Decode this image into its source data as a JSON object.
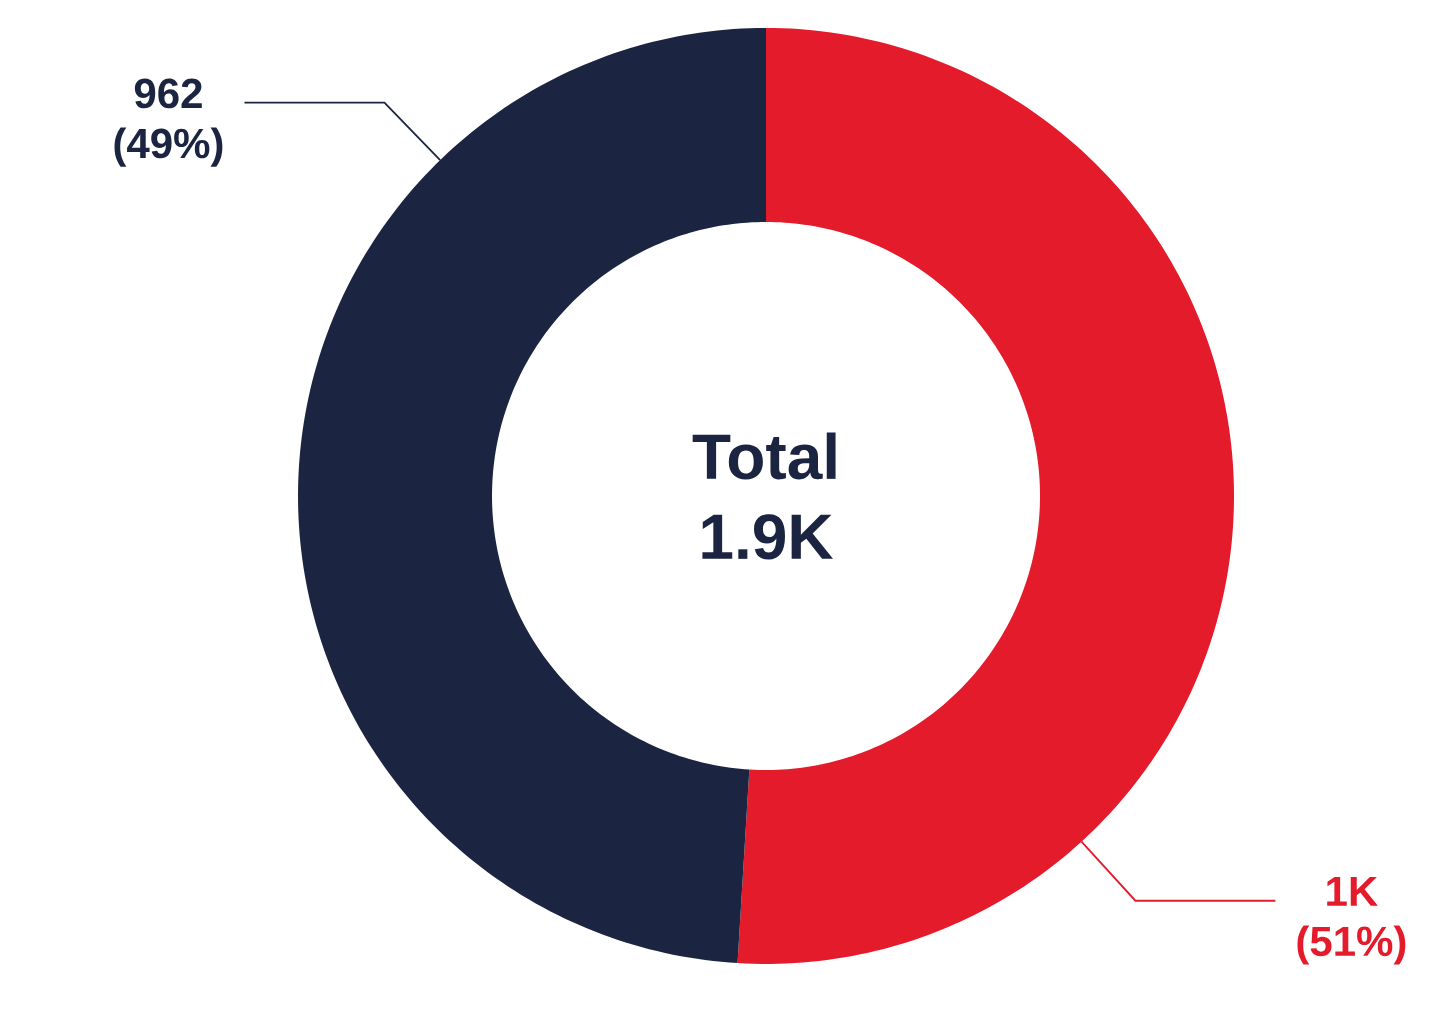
{
  "chart_data": {
    "type": "donut",
    "categories": [
      null,
      null
    ],
    "values": [
      1000,
      962
    ],
    "colors": [
      "#e31b2b",
      "#1b2441"
    ],
    "value_labels": [
      "1K (51%)",
      "962 (49%)"
    ],
    "annotations": [
      "Total 1.9K"
    ]
  }
}
